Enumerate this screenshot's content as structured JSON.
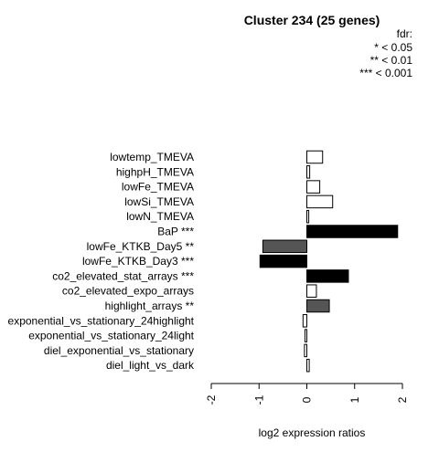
{
  "chart_data": {
    "type": "bar",
    "orientation": "horizontal",
    "title": "Cluster 234 (25 genes)",
    "xlabel": "log2 expression ratios",
    "ylabel": "",
    "xlim": [
      -2,
      2
    ],
    "xticks": [
      "-2",
      "-1",
      "0",
      "1",
      "2"
    ],
    "legend": {
      "title": "fdr:",
      "entries": [
        "* < 0.05",
        "** < 0.01",
        "*** < 0.001"
      ],
      "position": "top-right"
    },
    "categories": [
      "lowtemp_TMEVA",
      "highpH_TMEVA",
      "lowFe_TMEVA",
      "lowSi_TMEVA",
      "lowN_TMEVA",
      "BaP ***",
      "lowFe_KTKB_Day5 **",
      "lowFe_KTKB_Day3 ***",
      "co2_elevated_stat_arrays ***",
      "co2_elevated_expo_arrays",
      "highlight_arrays **",
      "exponential_vs_stationary_24highlight",
      "exponential_vs_stationary_24light",
      "diel_exponential_vs_stationary",
      "diel_light_vs_dark"
    ],
    "values": [
      0.33,
      0.06,
      0.27,
      0.54,
      0.04,
      1.9,
      -0.92,
      -0.98,
      0.87,
      0.2,
      0.47,
      -0.08,
      -0.04,
      -0.05,
      0.05
    ],
    "significance": [
      "",
      "",
      "",
      "",
      "",
      "***",
      "**",
      "***",
      "***",
      "",
      "**",
      "",
      "",
      "",
      ""
    ],
    "colors": {
      "***": "#000000",
      "**": "#555555",
      "": "#ffffff",
      "stroke": "#000000"
    }
  }
}
